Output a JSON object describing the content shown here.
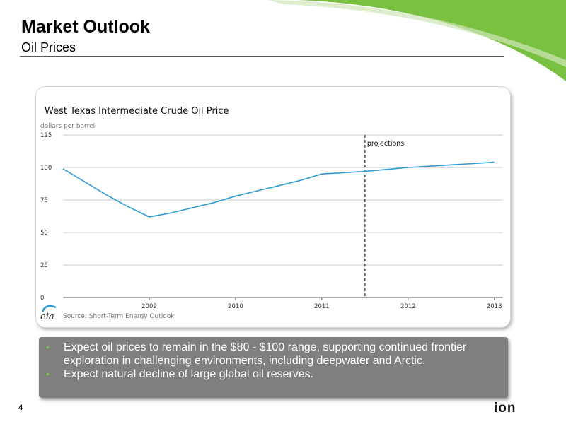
{
  "header": {
    "title": "Market Outlook",
    "subtitle": "Oil Prices"
  },
  "colors": {
    "accent_green": "#7ac142",
    "series_blue": "#2b9bd1",
    "bullet_box": "#7f7f7f"
  },
  "chart_data": {
    "type": "line",
    "title": "West Texas Intermediate Crude Oil Price",
    "ylabel": "dollars per barrel",
    "y_ticks": [
      "0",
      "25",
      "50",
      "75",
      "100",
      "125"
    ],
    "y_tick_values": [
      0,
      25,
      50,
      75,
      100,
      125
    ],
    "x_ticks": [
      "2009",
      "2010",
      "2011",
      "2012",
      "2013"
    ],
    "x_tick_values": [
      2009,
      2010,
      2011,
      2012,
      2013
    ],
    "xlim": [
      2008,
      2013.1
    ],
    "ylim": [
      0,
      125
    ],
    "grid": true,
    "series": [
      {
        "x": [
          2008.0,
          2008.25,
          2008.5,
          2008.75,
          2009.0,
          2009.25,
          2009.5,
          2009.75,
          2010.0,
          2010.25,
          2010.5,
          2010.75,
          2011.0,
          2011.25,
          2011.5,
          2011.75,
          2012.0,
          2012.25,
          2012.5,
          2012.75,
          2013.0
        ],
        "y": [
          99,
          89,
          79,
          70,
          62,
          65,
          69,
          73,
          78,
          82,
          86,
          90,
          95,
          96,
          97,
          98.5,
          100,
          101,
          102,
          103,
          104
        ]
      }
    ],
    "annotations": [
      {
        "text": "projections",
        "x": 2011.5
      }
    ],
    "source": "Source: Short-Term Energy Outlook",
    "logo": "eia"
  },
  "bullets": [
    "Expect oil prices to remain in the $80 - $100 range, supporting continued frontier exploration in challenging environments, including deepwater and Arctic.",
    "Expect natural decline of large global oil reserves."
  ],
  "bullet_marker": "•",
  "footer": {
    "page_number": "4",
    "logo_text": "ion"
  }
}
